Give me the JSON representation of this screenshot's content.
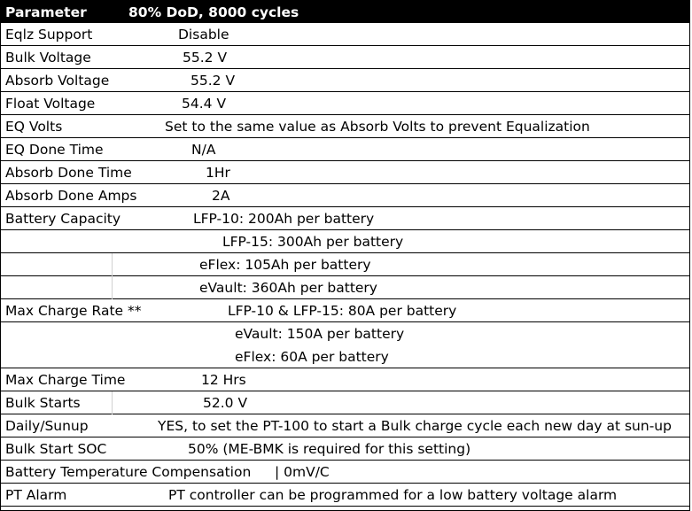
{
  "header": {
    "param": "Parameter",
    "value": "80% DoD, 8000 cycles"
  },
  "rows": [
    {
      "label": "Eqlz Support",
      "value": "Disable"
    },
    {
      "label": "Bulk Voltage",
      "value": "55.2 V"
    },
    {
      "label": "Absorb Voltage",
      "value": "55.2 V"
    },
    {
      "label": "Float Voltage",
      "value": "54.4 V"
    },
    {
      "label": "EQ Volts",
      "value": "Set to the same value as Absorb Volts to prevent Equalization"
    },
    {
      "label": "EQ Done Time",
      "value": "N/A"
    },
    {
      "label": "Absorb Done Time",
      "value": "1Hr"
    },
    {
      "label": "Absorb Done Amps",
      "value": "2A"
    },
    {
      "label": "Battery Capacity",
      "value": "LFP-10: 200Ah per battery"
    },
    {
      "label": "",
      "value": "LFP-15: 300Ah per battery"
    },
    {
      "label": "",
      "value": "eFlex: 105Ah per battery"
    },
    {
      "label": "",
      "value": "eVault: 360Ah per battery"
    },
    {
      "label": "Max Charge Rate **",
      "value": "LFP-10 & LFP-15: 80A per battery"
    },
    {
      "label": "",
      "value": "eVault: 150A per battery"
    },
    {
      "label": "",
      "value": "eFlex: 60A per battery"
    },
    {
      "label": "Max Charge Time",
      "value": "12 Hrs"
    },
    {
      "label": "Bulk Starts",
      "value": "52.0 V"
    },
    {
      "label": "Daily/Sunup",
      "value": "YES, to set the PT-100 to start a Bulk charge cycle each new day at sun-up"
    },
    {
      "label": "Bulk Start SOC",
      "value": "50% (ME-BMK is required for this setting)"
    },
    {
      "label": "Battery Temperature Compensation",
      "value": "| 0mV/C"
    },
    {
      "label": "PT Alarm",
      "value": "PT controller can be programmed for a low battery voltage alarm"
    }
  ]
}
